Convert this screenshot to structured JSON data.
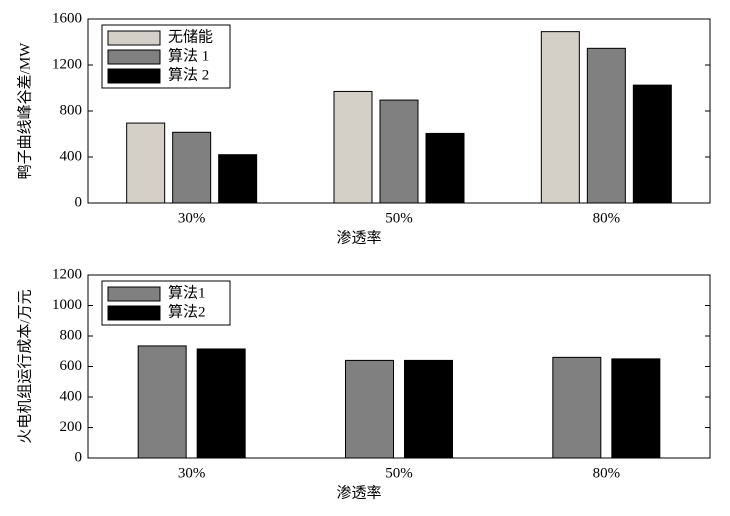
{
  "chart_data": [
    {
      "type": "bar",
      "ylabel": "鸭子曲线峰谷差/MW",
      "xlabel": "渗透率",
      "categories": [
        "30%",
        "50%",
        "80%"
      ],
      "series": [
        {
          "name": "无储能",
          "color": "#d4d0c8",
          "values": [
            695,
            970,
            1490
          ]
        },
        {
          "name": "算法 1",
          "color": "#808080",
          "values": [
            615,
            895,
            1345
          ]
        },
        {
          "name": "算法 2",
          "color": "#000000",
          "values": [
            420,
            605,
            1025
          ]
        }
      ],
      "ylim": [
        0,
        1600
      ],
      "yticks": [
        0,
        400,
        800,
        1200,
        1600
      ],
      "legend": "upper left"
    },
    {
      "type": "bar",
      "ylabel": "火电机组运行成本/万元",
      "xlabel": "渗透率",
      "categories": [
        "30%",
        "50%",
        "80%"
      ],
      "series": [
        {
          "name": "算法1",
          "color": "#808080",
          "values": [
            735,
            640,
            660
          ]
        },
        {
          "name": "算法2",
          "color": "#000000",
          "values": [
            715,
            640,
            650
          ]
        }
      ],
      "ylim": [
        0,
        1200
      ],
      "yticks": [
        0,
        200,
        400,
        600,
        800,
        1000,
        1200
      ],
      "legend": "upper left"
    }
  ]
}
